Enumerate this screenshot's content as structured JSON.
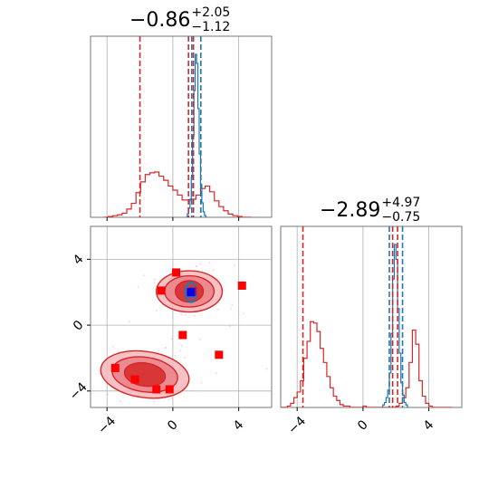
{
  "chart_data": {
    "type": "corner",
    "parameters": [
      {
        "title": {
          "median": "−0.86",
          "plus": "+2.05",
          "minus": "−1.12"
        }
      },
      {
        "title": {
          "median": "−2.89",
          "plus": "+4.97",
          "minus": "−0.75"
        }
      }
    ],
    "axis_range": [
      -5,
      6
    ],
    "ticks": [
      -4,
      0,
      4
    ],
    "tick_labels": [
      "−4",
      "0",
      "4"
    ],
    "grid": true,
    "colors": {
      "red": "#d62728",
      "blue": "#1f77b4",
      "markers_red": "#ff0000",
      "marker_blue": "#0000ff",
      "axes": "#555555",
      "grid": "#b0b0b0"
    },
    "red_samples": {
      "param1_histogram": {
        "bin_edges_start": -4.2,
        "bin_width": 0.28,
        "counts": [
          0,
          1,
          2,
          3,
          5,
          10,
          17,
          30,
          43,
          52,
          54,
          55,
          50,
          45,
          38,
          33,
          27,
          21,
          21,
          22,
          27,
          35,
          38,
          31,
          20,
          13,
          8,
          4,
          2,
          1,
          0,
          0
        ]
      },
      "param2_histogram": {
        "bin_edges_start": -5.0,
        "bin_width": 0.2,
        "counts": [
          0,
          0,
          1,
          3,
          7,
          11,
          19,
          35,
          47,
          61,
          60,
          54,
          42,
          32,
          22,
          14,
          8,
          5,
          2,
          1,
          1,
          0,
          0,
          0,
          0,
          1,
          0,
          0,
          0,
          0,
          0,
          0,
          0,
          0,
          0,
          1,
          3,
          7,
          14,
          32,
          55,
          45,
          19,
          8,
          3,
          1,
          0,
          0,
          0,
          0,
          0,
          0
        ]
      },
      "quantile_lines_param1": [
        -2.0,
        0.95,
        1.25
      ],
      "quantile_lines_param2": [
        -3.65,
        1.8,
        2.1
      ],
      "contours": [
        {
          "center": [
            -1.7,
            -3.0
          ],
          "levels": [
            {
              "rx": 2.7,
              "ry": 1.4
            },
            {
              "rx": 2.0,
              "ry": 1.05
            },
            {
              "rx": 1.25,
              "ry": 0.7
            }
          ]
        },
        {
          "center": [
            1.0,
            2.05
          ],
          "levels": [
            {
              "rx": 2.0,
              "ry": 1.25
            },
            {
              "rx": 1.5,
              "ry": 0.95
            },
            {
              "rx": 0.85,
              "ry": 0.65
            }
          ]
        }
      ]
    },
    "blue_samples": {
      "param1_histogram": {
        "bin_edges_start": 0.8,
        "bin_width": 0.08,
        "counts": [
          0,
          2,
          5,
          10,
          22,
          45,
          70,
          90,
          85,
          60,
          35,
          18,
          8,
          3,
          1,
          0
        ]
      },
      "param2_histogram": {
        "bin_edges_start": 1.1,
        "bin_width": 0.1,
        "counts": [
          0,
          1,
          2,
          4,
          7,
          14,
          30,
          52,
          66,
          60,
          40,
          22,
          10,
          5,
          2,
          1,
          0
        ]
      },
      "quantile_lines_param1": [
        1.15,
        1.7
      ],
      "quantile_lines_param2": [
        1.6,
        2.4
      ],
      "contour": {
        "center": [
          1.1,
          2.0
        ],
        "rx": 0.35,
        "ry": 0.6
      }
    },
    "red_points": [
      [
        0.2,
        3.2
      ],
      [
        -0.7,
        2.1
      ],
      [
        1.2,
        2.05
      ],
      [
        4.2,
        2.4
      ],
      [
        0.6,
        -0.6
      ],
      [
        2.8,
        -1.8
      ],
      [
        -3.5,
        -2.6
      ],
      [
        -2.3,
        -3.3
      ],
      [
        -1.0,
        -3.9
      ],
      [
        -0.2,
        -3.9
      ]
    ],
    "blue_point": [
      1.1,
      2.0
    ]
  }
}
